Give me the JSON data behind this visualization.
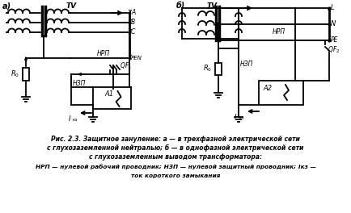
{
  "background_color": "#ffffff",
  "caption_line1": "Рис. 2.3. Защитное зануление: а — в трехфазной электрической сети",
  "caption_line2": "с глухозаземленной нейтралью; б — в однофазной электрической сети",
  "caption_line3": "с глухозаземленным выводом трансформатора:",
  "caption_line4": "НРП — нулевой рабочий проводник; НЗП — нулевой защитный проводник; I",
  "caption_line4_sub": "кз",
  "caption_line4_end": " —",
  "caption_line5": "ток короткого замыкания"
}
